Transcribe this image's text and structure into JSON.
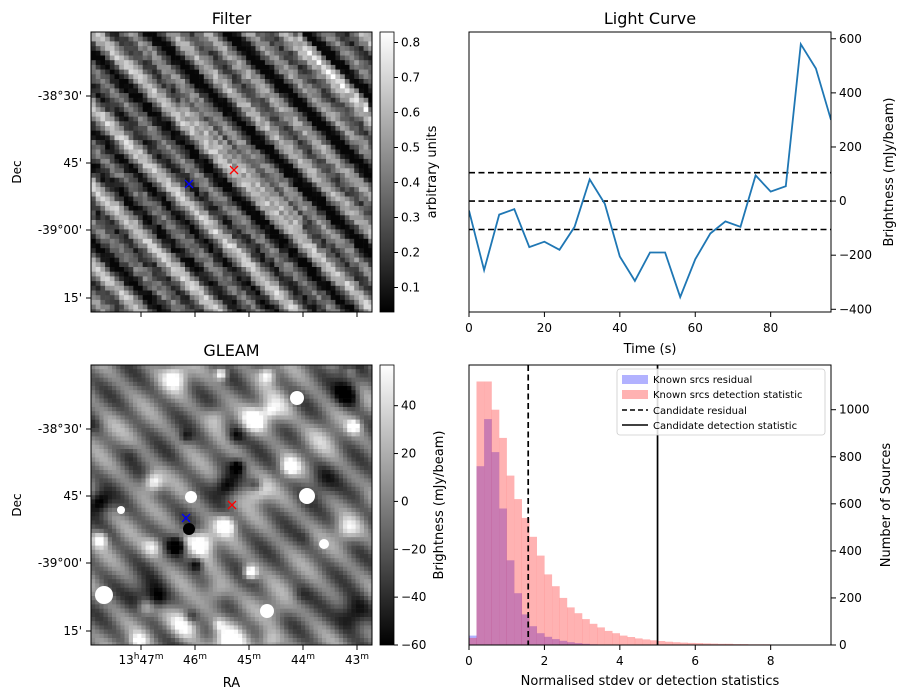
{
  "chart_data": [
    {
      "type": "heatmap",
      "title": "Filter",
      "ylabel": "Dec",
      "xlabel": "",
      "y_ticklabels": [
        "-38°30'",
        "45'",
        "-39°00'",
        "15'"
      ],
      "colorbar": {
        "label": "arbitrary units",
        "range": [
          0.03,
          0.83
        ],
        "ticks": [
          "0.1",
          "0.2",
          "0.3",
          "0.4",
          "0.5",
          "0.6",
          "0.7",
          "0.8"
        ],
        "tick_values": [
          0.1,
          0.2,
          0.3,
          0.4,
          0.5,
          0.6,
          0.7,
          0.8
        ],
        "colormap": "gray"
      },
      "markers": [
        {
          "symbol": "x",
          "color": "#0000ff",
          "note": "known source position"
        },
        {
          "symbol": "x",
          "color": "#ff0000",
          "note": "candidate position"
        }
      ]
    },
    {
      "type": "line",
      "title": "Light Curve",
      "xlabel": "Time (s)",
      "ylabel": "Brightness (mJy/beam)",
      "xlim": [
        0,
        96
      ],
      "ylim": [
        -410,
        625
      ],
      "x_ticks": [
        0,
        20,
        40,
        60,
        80
      ],
      "y_ticks": [
        -400,
        -200,
        0,
        200,
        400,
        600
      ],
      "y_axis_side": "right",
      "series": [
        {
          "color": "#1f77b4",
          "x": [
            0,
            4,
            8,
            12,
            16,
            20,
            24,
            28,
            32,
            36,
            40,
            44,
            48,
            52,
            56,
            60,
            64,
            68,
            72,
            76,
            80,
            84,
            88,
            92,
            96
          ],
          "y": [
            -35,
            -255,
            -50,
            -30,
            -170,
            -150,
            -180,
            -95,
            80,
            -10,
            -205,
            -295,
            -190,
            -190,
            -355,
            -215,
            -120,
            -75,
            -95,
            95,
            35,
            55,
            580,
            490,
            300
          ]
        }
      ],
      "hlines": [
        {
          "y": 105,
          "style": "dashed",
          "color": "#000000"
        },
        {
          "y": 0,
          "style": "dashed",
          "color": "#000000"
        },
        {
          "y": -105,
          "style": "dashed",
          "color": "#000000"
        }
      ]
    },
    {
      "type": "heatmap",
      "title": "GLEAM",
      "xlabel": "RA",
      "ylabel": "Dec",
      "x_ticklabels": [
        {
          "main": "13",
          "sup1": "h",
          "mid": "47",
          "sup2": "m"
        },
        {
          "main": "46",
          "sup2": "m"
        },
        {
          "main": "45",
          "sup2": "m"
        },
        {
          "main": "44",
          "sup2": "m"
        },
        {
          "main": "43",
          "sup2": "m"
        }
      ],
      "y_ticklabels": [
        "-38°30'",
        "45'",
        "-39°00'",
        "15'"
      ],
      "colorbar": {
        "label": "Brightness (mJy/beam)",
        "range": [
          -60,
          57
        ],
        "ticks": [
          "−60",
          "−40",
          "−20",
          "0",
          "20",
          "40"
        ],
        "tick_values": [
          -60,
          -40,
          -20,
          0,
          20,
          40
        ],
        "colormap": "gray"
      },
      "markers": [
        {
          "symbol": "x",
          "color": "#0000ff",
          "note": "known source position"
        },
        {
          "symbol": "x",
          "color": "#ff0000",
          "note": "candidate position"
        }
      ]
    },
    {
      "type": "bar",
      "subtype": "histogram",
      "xlabel": "Normalised stdev or detection statistics",
      "ylabel": "Number of Sources",
      "y_axis_side": "right",
      "xlim": [
        0,
        9.6
      ],
      "ylim": [
        0,
        1190
      ],
      "x_ticks": [
        0,
        2,
        4,
        6,
        8
      ],
      "y_ticks": [
        0,
        200,
        400,
        600,
        800,
        1000
      ],
      "legend_position": "top-right",
      "bin_width": 0.2,
      "series": [
        {
          "name": "Known srcs residual",
          "color": "#0000ff",
          "alpha": 0.3,
          "bin_starts": [
            0.0,
            0.2,
            0.4,
            0.6,
            0.8,
            1.0,
            1.2,
            1.4,
            1.6,
            1.8,
            2.0,
            2.2,
            2.4,
            2.6,
            2.8,
            3.0,
            3.2
          ],
          "counts": [
            40,
            760,
            960,
            820,
            580,
            360,
            220,
            130,
            80,
            50,
            35,
            25,
            18,
            12,
            8,
            5,
            3
          ]
        },
        {
          "name": "Known srcs detection statistic",
          "color": "#ff0000",
          "alpha": 0.3,
          "bin_starts": [
            0.0,
            0.2,
            0.4,
            0.6,
            0.8,
            1.0,
            1.2,
            1.4,
            1.6,
            1.8,
            2.0,
            2.2,
            2.4,
            2.6,
            2.8,
            3.0,
            3.2,
            3.4,
            3.6,
            3.8,
            4.0,
            4.2,
            4.4,
            4.6,
            4.8,
            5.0,
            5.2,
            5.4,
            5.6,
            5.8,
            6.0,
            6.2,
            6.4,
            6.6,
            6.8,
            7.0,
            7.2,
            7.4,
            7.6,
            7.8,
            8.0,
            8.2,
            8.4,
            8.6,
            8.8,
            9.0,
            9.2,
            9.4
          ],
          "counts": [
            30,
            1120,
            1120,
            1000,
            880,
            720,
            620,
            540,
            460,
            380,
            300,
            250,
            200,
            160,
            135,
            110,
            90,
            75,
            60,
            50,
            40,
            34,
            28,
            24,
            20,
            17,
            14,
            12,
            10,
            9,
            8,
            7,
            6,
            5,
            5,
            4,
            4,
            3,
            3,
            3,
            2,
            2,
            2,
            2,
            1,
            1,
            1,
            1
          ]
        }
      ],
      "vlines": [
        {
          "x": 1.57,
          "name": "Candidate residual",
          "style": "dashed",
          "color": "#000000"
        },
        {
          "x": 5.0,
          "name": "Candidate detection statistic",
          "style": "solid",
          "color": "#000000"
        }
      ]
    }
  ]
}
